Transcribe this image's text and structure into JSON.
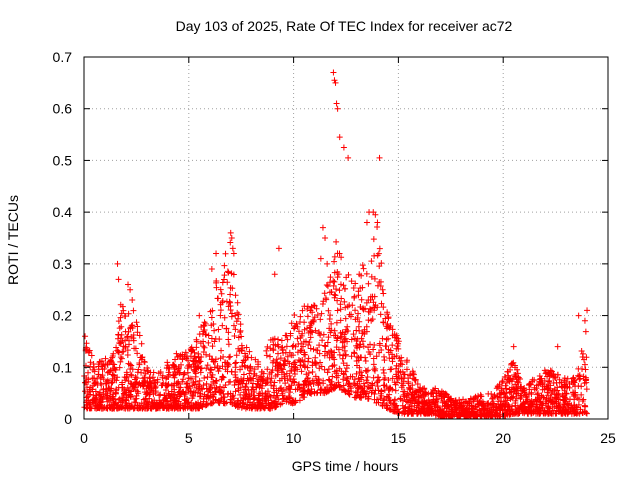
{
  "chart_data": {
    "type": "scatter",
    "title": "Day 103 of 2025, Rate Of TEC Index for receiver ac72",
    "xlabel": "GPS time / hours",
    "ylabel": "ROTI / TECUs",
    "xlim": [
      0,
      25
    ],
    "ylim": [
      0,
      0.7
    ],
    "x_ticks": [
      0,
      5,
      10,
      15,
      20,
      25
    ],
    "y_ticks": [
      0,
      0.1,
      0.2,
      0.3,
      0.4,
      0.5,
      0.6,
      0.7
    ],
    "x_tick_labels": [
      "0",
      "5",
      "10",
      "15",
      "20",
      "25"
    ],
    "y_tick_labels": [
      "0",
      "0.1",
      "0.2",
      "0.3",
      "0.4",
      "0.5",
      "0.6",
      "0.7"
    ],
    "grid": true,
    "marker": "+",
    "series_color": "#ff0000",
    "envelope": {
      "x": [
        0.0,
        0.5,
        1.0,
        1.5,
        1.8,
        2.0,
        2.4,
        3.0,
        3.5,
        4.0,
        4.5,
        5.0,
        5.5,
        6.0,
        6.5,
        7.0,
        7.5,
        8.0,
        8.5,
        9.0,
        9.5,
        10.0,
        10.5,
        11.0,
        11.5,
        12.0,
        12.5,
        13.0,
        13.5,
        14.0,
        14.5,
        15.0,
        15.5,
        16.0,
        16.5,
        17.0,
        17.5,
        18.0,
        18.5,
        19.0,
        19.5,
        20.0,
        20.5,
        21.0,
        21.5,
        22.0,
        22.5,
        23.0,
        23.5,
        24.0
      ],
      "upper": [
        0.16,
        0.11,
        0.12,
        0.13,
        0.26,
        0.2,
        0.22,
        0.1,
        0.09,
        0.12,
        0.14,
        0.13,
        0.17,
        0.22,
        0.3,
        0.35,
        0.18,
        0.12,
        0.11,
        0.17,
        0.17,
        0.2,
        0.22,
        0.22,
        0.25,
        0.35,
        0.28,
        0.3,
        0.3,
        0.38,
        0.2,
        0.16,
        0.11,
        0.07,
        0.06,
        0.06,
        0.04,
        0.04,
        0.04,
        0.05,
        0.05,
        0.08,
        0.12,
        0.06,
        0.08,
        0.1,
        0.09,
        0.08,
        0.09,
        0.18
      ],
      "lower": [
        0.02,
        0.02,
        0.02,
        0.02,
        0.02,
        0.02,
        0.02,
        0.02,
        0.02,
        0.02,
        0.02,
        0.02,
        0.02,
        0.03,
        0.03,
        0.03,
        0.02,
        0.02,
        0.02,
        0.02,
        0.03,
        0.03,
        0.04,
        0.05,
        0.05,
        0.06,
        0.05,
        0.04,
        0.04,
        0.03,
        0.02,
        0.01,
        0.01,
        0.01,
        0.01,
        0.005,
        0.005,
        0.005,
        0.005,
        0.005,
        0.005,
        0.005,
        0.01,
        0.01,
        0.01,
        0.01,
        0.01,
        0.01,
        0.01,
        0.01
      ]
    },
    "outliers": {
      "x": [
        0.05,
        1.6,
        1.65,
        2.1,
        2.2,
        2.3,
        5.5,
        6.1,
        6.3,
        7.0,
        7.05,
        7.1,
        7.15,
        9.1,
        9.3,
        11.3,
        11.4,
        11.5,
        11.6,
        11.9,
        11.95,
        12.0,
        12.05,
        12.1,
        12.2,
        12.4,
        12.6,
        13.5,
        13.6,
        13.8,
        13.9,
        14.0,
        14.1,
        20.5,
        22.6,
        23.6,
        23.9,
        24.0
      ],
      "y": [
        0.16,
        0.3,
        0.27,
        0.26,
        0.25,
        0.23,
        0.2,
        0.29,
        0.32,
        0.36,
        0.35,
        0.33,
        0.32,
        0.28,
        0.33,
        0.31,
        0.37,
        0.35,
        0.3,
        0.67,
        0.655,
        0.65,
        0.61,
        0.6,
        0.545,
        0.525,
        0.505,
        0.38,
        0.4,
        0.4,
        0.395,
        0.38,
        0.505,
        0.14,
        0.14,
        0.2,
        0.19,
        0.21
      ]
    }
  }
}
